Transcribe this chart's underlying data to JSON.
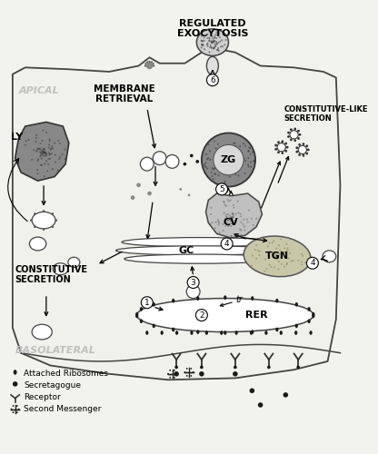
{
  "bg_color": "#f2f2ee",
  "cell_color": "#f0f0ec",
  "regulated_label": "REGULATED\nEXOCYTOSIS",
  "membrane_retrieval_label": "MEMBRANE\nRETRIEVAL",
  "constitutive_like_label": "CONSTITUTIVE-LIKE\nSECRETION",
  "constitutive_label": "CONSTITUTIVE\nSECRETION",
  "apical_label": "APICAL",
  "basolateral_label": "BASOLATERAL",
  "LY_label": "LY",
  "ZG_label": "ZG",
  "CV_label": "CV",
  "TGN_label": "TGN",
  "GC_label": "GC",
  "RER_label": "RER",
  "tr_label": "tr",
  "legend": [
    "Attached Ribosomes",
    "Secretagogue",
    "Receptor",
    "Second Messenger"
  ]
}
